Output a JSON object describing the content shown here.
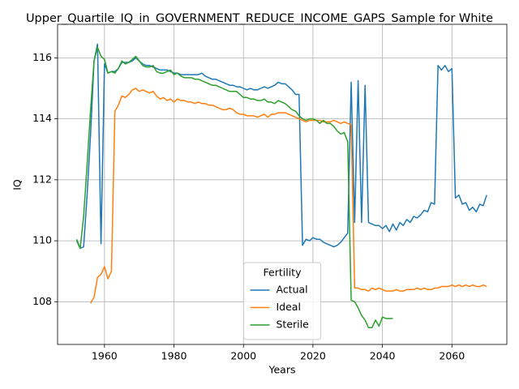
{
  "chart_data": {
    "type": "line",
    "title": "Upper_Quartile_IQ_in_GOVERNMENT_REDUCE_INCOME_GAPS_Sample for White",
    "x_label": "Years",
    "y_label": "IQ",
    "x": [
      1952,
      1953,
      1954,
      1955,
      1956,
      1957,
      1958,
      1959,
      1960,
      1961,
      1962,
      1963,
      1964,
      1965,
      1966,
      1967,
      1968,
      1969,
      1970,
      1971,
      1972,
      1973,
      1974,
      1975,
      1976,
      1977,
      1978,
      1979,
      1980,
      1981,
      1982,
      1983,
      1984,
      1985,
      1986,
      1987,
      1988,
      1989,
      1990,
      1991,
      1992,
      1993,
      1994,
      1995,
      1996,
      1997,
      1998,
      1999,
      2000,
      2001,
      2002,
      2003,
      2004,
      2005,
      2006,
      2007,
      2008,
      2009,
      2010,
      2011,
      2012,
      2013,
      2014,
      2015,
      2016,
      2017,
      2018,
      2019,
      2020,
      2021,
      2022,
      2023,
      2024,
      2025,
      2026,
      2027,
      2028,
      2029,
      2030,
      2031,
      2032,
      2033,
      2034,
      2035,
      2036,
      2037,
      2038,
      2039,
      2040,
      2041,
      2042,
      2043,
      2044,
      2045,
      2046,
      2047,
      2048,
      2049,
      2050,
      2051,
      2052,
      2053,
      2054,
      2055,
      2056,
      2057,
      2058,
      2059,
      2060,
      2061,
      2062,
      2063,
      2064,
      2065,
      2066,
      2067,
      2068,
      2069,
      2070
    ],
    "series": [
      {
        "name": "Actual",
        "color": "#1f77b4",
        "values": [
          110.0,
          109.75,
          109.8,
          111.5,
          113.5,
          115.9,
          116.45,
          109.9,
          115.8,
          115.5,
          115.55,
          115.55,
          115.65,
          115.85,
          115.85,
          115.85,
          115.9,
          116.0,
          115.9,
          115.8,
          115.75,
          115.75,
          115.7,
          115.65,
          115.6,
          115.6,
          115.6,
          115.55,
          115.5,
          115.5,
          115.45,
          115.45,
          115.45,
          115.45,
          115.45,
          115.45,
          115.5,
          115.4,
          115.35,
          115.3,
          115.3,
          115.25,
          115.2,
          115.15,
          115.1,
          115.1,
          115.05,
          115.05,
          115.0,
          114.95,
          115.0,
          114.95,
          114.95,
          115.0,
          115.05,
          115.0,
          115.05,
          115.1,
          115.2,
          115.15,
          115.15,
          115.05,
          114.95,
          114.8,
          114.8,
          109.85,
          110.05,
          110.0,
          110.1,
          110.05,
          110.05,
          109.95,
          109.9,
          109.85,
          109.8,
          109.85,
          109.95,
          110.1,
          110.25,
          115.2,
          110.6,
          115.25,
          110.6,
          115.1,
          110.6,
          110.55,
          110.5,
          110.5,
          110.4,
          110.5,
          110.3,
          110.55,
          110.35,
          110.6,
          110.5,
          110.7,
          110.6,
          110.8,
          110.75,
          110.85,
          111.0,
          110.95,
          111.25,
          111.2,
          115.75,
          115.6,
          115.75,
          115.55,
          115.65,
          111.4,
          111.5,
          111.2,
          111.25,
          111.0,
          111.1,
          110.95,
          111.2,
          111.15,
          111.5
        ]
      },
      {
        "name": "Ideal",
        "color": "#ff7f0e",
        "values": [
          null,
          null,
          null,
          null,
          107.95,
          108.15,
          108.8,
          108.9,
          109.15,
          108.75,
          109.0,
          114.25,
          114.45,
          114.75,
          114.7,
          114.8,
          114.95,
          115.0,
          114.9,
          114.95,
          114.9,
          114.85,
          114.9,
          114.75,
          114.65,
          114.7,
          114.6,
          114.65,
          114.55,
          114.65,
          114.6,
          114.6,
          114.55,
          114.55,
          114.5,
          114.55,
          114.5,
          114.5,
          114.45,
          114.45,
          114.4,
          114.35,
          114.3,
          114.3,
          114.35,
          114.3,
          114.2,
          114.15,
          114.15,
          114.1,
          114.1,
          114.1,
          114.05,
          114.1,
          114.15,
          114.05,
          114.15,
          114.15,
          114.2,
          114.2,
          114.2,
          114.15,
          114.1,
          114.05,
          114.0,
          113.95,
          113.9,
          113.95,
          113.95,
          113.95,
          113.95,
          113.9,
          113.9,
          113.9,
          113.95,
          113.9,
          113.85,
          113.9,
          113.85,
          113.8,
          108.45,
          108.45,
          108.4,
          108.4,
          108.35,
          108.45,
          108.4,
          108.45,
          108.4,
          108.35,
          108.35,
          108.35,
          108.4,
          108.35,
          108.35,
          108.4,
          108.4,
          108.4,
          108.45,
          108.4,
          108.45,
          108.4,
          108.4,
          108.45,
          108.45,
          108.5,
          108.5,
          108.5,
          108.55,
          108.5,
          108.55,
          108.5,
          108.55,
          108.5,
          108.55,
          108.5,
          108.5,
          108.55,
          108.5
        ]
      },
      {
        "name": "Sterile",
        "color": "#2ca02c",
        "values": [
          110.05,
          109.75,
          110.8,
          112.5,
          114.3,
          115.9,
          116.35,
          116.05,
          115.95,
          115.5,
          115.55,
          115.5,
          115.65,
          115.9,
          115.8,
          115.85,
          115.95,
          116.05,
          115.9,
          115.75,
          115.7,
          115.7,
          115.75,
          115.55,
          115.5,
          115.5,
          115.55,
          115.6,
          115.45,
          115.5,
          115.4,
          115.35,
          115.35,
          115.35,
          115.3,
          115.3,
          115.25,
          115.2,
          115.15,
          115.1,
          115.1,
          115.05,
          115.0,
          114.95,
          114.9,
          114.9,
          114.9,
          114.8,
          114.7,
          114.7,
          114.65,
          114.65,
          114.6,
          114.6,
          114.65,
          114.55,
          114.55,
          114.5,
          114.6,
          114.55,
          114.5,
          114.4,
          114.3,
          114.25,
          114.1,
          114.0,
          113.95,
          114.0,
          114.0,
          113.95,
          113.85,
          113.95,
          113.85,
          113.85,
          113.75,
          113.6,
          113.5,
          113.55,
          113.25,
          108.05,
          108.0,
          107.8,
          107.55,
          107.4,
          107.15,
          107.15,
          107.4,
          107.2,
          107.5,
          107.45,
          107.45,
          107.45,
          null,
          null,
          null,
          null,
          null,
          null,
          null,
          null,
          null,
          null,
          null,
          null,
          null,
          null,
          null,
          null,
          null,
          null,
          null,
          null,
          null,
          null,
          null,
          null,
          null,
          null,
          null
        ]
      }
    ],
    "xlim": [
      1946.5,
      2075.8
    ],
    "xticks": [
      1960,
      1980,
      2000,
      2020,
      2040,
      2060
    ],
    "ylim": [
      106.6,
      117.1
    ],
    "yticks": [
      108,
      110,
      112,
      114,
      116
    ],
    "grid": true,
    "legend_title": "Fertility",
    "legend_position": "lower center"
  }
}
